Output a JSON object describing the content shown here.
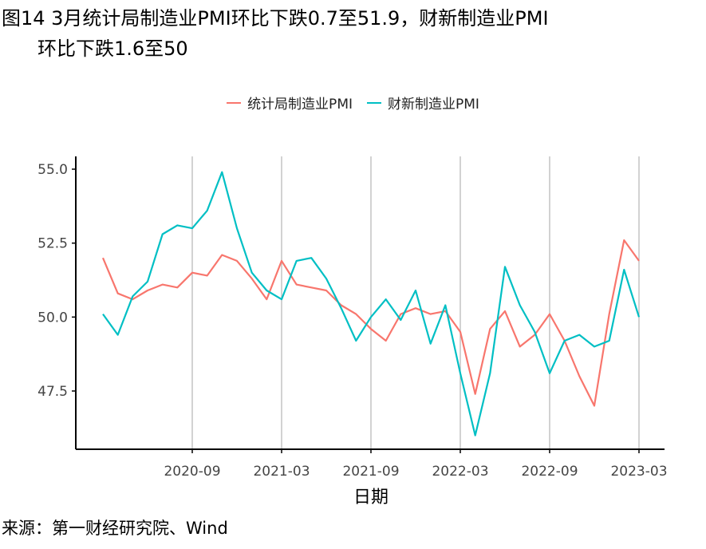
{
  "title_line1": "图14 3月统计局制造业PMI环比下跌0.7至51.9，财新制造业PMI",
  "title_line2": "环比下跌1.6至50",
  "source": "来源：第一财经研究院、Wind",
  "chart_data": {
    "type": "line",
    "title": "图14 3月统计局制造业PMI环比下跌0.7至51.9，财新制造业PMI环比下跌1.6至50",
    "xlabel": "日期",
    "ylabel": "",
    "ylim": [
      45.8,
      55.3
    ],
    "yticks": [
      47.5,
      50.0,
      52.5,
      55.0
    ],
    "ytick_labels": [
      "47.5",
      "50.0",
      "52.5",
      "55.0"
    ],
    "xticks": [
      "2020-09",
      "2021-03",
      "2021-09",
      "2022-03",
      "2022-09",
      "2023-03"
    ],
    "x": [
      "2020-03",
      "2020-04",
      "2020-05",
      "2020-06",
      "2020-07",
      "2020-08",
      "2020-09",
      "2020-10",
      "2020-11",
      "2020-12",
      "2021-01",
      "2021-02",
      "2021-03",
      "2021-04",
      "2021-05",
      "2021-06",
      "2021-07",
      "2021-08",
      "2021-09",
      "2021-10",
      "2021-11",
      "2021-12",
      "2022-01",
      "2022-02",
      "2022-03",
      "2022-04",
      "2022-05",
      "2022-06",
      "2022-07",
      "2022-08",
      "2022-09",
      "2022-10",
      "2022-11",
      "2022-12",
      "2023-01",
      "2023-02",
      "2023-03"
    ],
    "grid": "vertical at x ticks",
    "legend": "top-center",
    "series": [
      {
        "name": "统计局制造业PMI",
        "color": "#F8766D",
        "values": [
          52.0,
          50.8,
          50.6,
          50.9,
          51.1,
          51.0,
          51.5,
          51.4,
          52.1,
          51.9,
          51.3,
          50.6,
          51.9,
          51.1,
          51.0,
          50.9,
          50.4,
          50.1,
          49.6,
          49.2,
          50.1,
          50.3,
          50.1,
          50.2,
          49.5,
          47.4,
          49.6,
          50.2,
          49.0,
          49.4,
          50.1,
          49.2,
          48.0,
          47.0,
          50.1,
          52.6,
          51.9
        ]
      },
      {
        "name": "财新制造业PMI",
        "color": "#00BFC4",
        "values": [
          50.1,
          49.4,
          50.7,
          51.2,
          52.8,
          53.1,
          53.0,
          53.6,
          54.9,
          53.0,
          51.5,
          50.9,
          50.6,
          51.9,
          52.0,
          51.3,
          50.3,
          49.2,
          50.0,
          50.6,
          49.9,
          50.9,
          49.1,
          50.4,
          48.1,
          46.0,
          48.1,
          51.7,
          50.4,
          49.5,
          48.1,
          49.2,
          49.4,
          49.0,
          49.2,
          51.6,
          50.0
        ]
      }
    ]
  }
}
